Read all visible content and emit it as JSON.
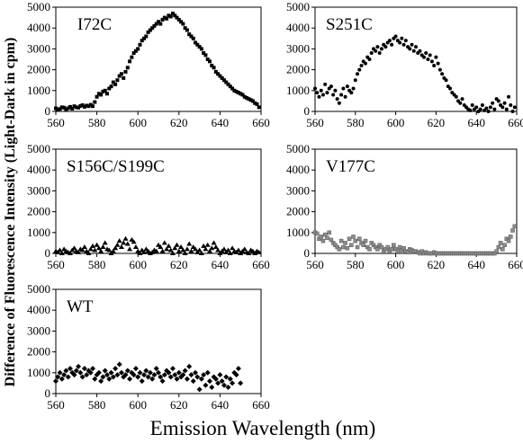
{
  "figure": {
    "xlabel": "Emission Wavelength (nm)",
    "ylabel": "Difference of Fluorescence Intensity (Light-Dark in cpm)"
  },
  "colors": {
    "axis": "#000000",
    "grid_fill": "#ffffff",
    "marker_dark": "#000000",
    "marker_gray": "#8c8c8c"
  },
  "chart_data": [
    {
      "type": "scatter",
      "title": "I72C",
      "marker": "square",
      "xlim": [
        560,
        660
      ],
      "ylim": [
        0,
        5000
      ],
      "xticks": [
        560,
        580,
        600,
        620,
        640,
        660
      ],
      "yticks": [
        0,
        1000,
        2000,
        3000,
        4000,
        5000
      ],
      "x": [
        560,
        561,
        562,
        563,
        564,
        565,
        566,
        567,
        568,
        569,
        570,
        571,
        572,
        573,
        574,
        575,
        576,
        577,
        578,
        579,
        580,
        581,
        582,
        583,
        584,
        585,
        586,
        587,
        588,
        589,
        590,
        591,
        592,
        593,
        594,
        595,
        596,
        597,
        598,
        599,
        600,
        601,
        602,
        603,
        604,
        605,
        606,
        607,
        608,
        609,
        610,
        611,
        612,
        613,
        614,
        615,
        616,
        617,
        618,
        619,
        620,
        621,
        622,
        623,
        624,
        625,
        626,
        627,
        628,
        629,
        630,
        631,
        632,
        633,
        634,
        635,
        636,
        637,
        638,
        639,
        640,
        641,
        642,
        643,
        644,
        645,
        646,
        647,
        648,
        649,
        650,
        651,
        652,
        653,
        654,
        655,
        656,
        657,
        658,
        659
      ],
      "y": [
        150,
        80,
        120,
        200,
        180,
        100,
        150,
        220,
        130,
        250,
        200,
        180,
        260,
        300,
        220,
        280,
        250,
        320,
        250,
        450,
        700,
        850,
        800,
        950,
        1000,
        850,
        1100,
        1200,
        1400,
        1300,
        1500,
        1700,
        1800,
        1600,
        1900,
        2100,
        2400,
        2600,
        2800,
        2900,
        3000,
        3200,
        3400,
        3500,
        3600,
        3800,
        3900,
        4000,
        4100,
        4200,
        4300,
        4200,
        4400,
        4500,
        4450,
        4600,
        4550,
        4700,
        4600,
        4500,
        4400,
        4300,
        4200,
        4000,
        3900,
        3700,
        3600,
        3500,
        3300,
        3200,
        3100,
        3000,
        2800,
        2700,
        2500,
        2400,
        2200,
        2100,
        1900,
        1800,
        1700,
        1600,
        1500,
        1400,
        1300,
        1200,
        1100,
        1000,
        950,
        900,
        850,
        800,
        700,
        650,
        600,
        550,
        500,
        400,
        350,
        200
      ]
    },
    {
      "type": "scatter",
      "title": "S251C",
      "marker": "circle",
      "xlim": [
        560,
        660
      ],
      "ylim": [
        0,
        5000
      ],
      "xticks": [
        560,
        580,
        600,
        620,
        640,
        660
      ],
      "yticks": [
        0,
        1000,
        2000,
        3000,
        4000,
        5000
      ],
      "x": [
        560,
        561,
        562,
        563,
        564,
        565,
        566,
        567,
        568,
        569,
        570,
        571,
        572,
        573,
        574,
        575,
        576,
        577,
        578,
        579,
        580,
        581,
        582,
        583,
        584,
        585,
        586,
        587,
        588,
        589,
        590,
        591,
        592,
        593,
        594,
        595,
        596,
        597,
        598,
        599,
        600,
        601,
        602,
        603,
        604,
        605,
        606,
        607,
        608,
        609,
        610,
        611,
        612,
        613,
        614,
        615,
        616,
        617,
        618,
        619,
        620,
        621,
        622,
        623,
        624,
        625,
        626,
        627,
        628,
        629,
        630,
        631,
        632,
        633,
        634,
        635,
        636,
        637,
        638,
        639,
        640,
        641,
        642,
        643,
        644,
        645,
        646,
        647,
        648,
        649,
        650,
        651,
        652,
        653,
        654,
        655,
        656,
        657,
        658,
        659
      ],
      "y": [
        1100,
        900,
        700,
        1000,
        800,
        1300,
        900,
        1100,
        1200,
        800,
        1000,
        600,
        400,
        800,
        1100,
        700,
        1200,
        1000,
        900,
        1100,
        1500,
        1800,
        2000,
        2200,
        2400,
        2300,
        2600,
        2500,
        2800,
        3000,
        2900,
        3100,
        2800,
        3000,
        3200,
        3100,
        3300,
        3400,
        3200,
        3500,
        3600,
        3400,
        3300,
        3500,
        3200,
        3400,
        3100,
        3000,
        3200,
        2900,
        3100,
        2800,
        2900,
        2700,
        2600,
        2800,
        2500,
        2700,
        2400,
        2200,
        2600,
        2300,
        2000,
        1800,
        1600,
        1500,
        1200,
        1100,
        900,
        800,
        700,
        500,
        400,
        600,
        300,
        200,
        100,
        50,
        300,
        100,
        200,
        0,
        100,
        300,
        50,
        150,
        0,
        200,
        400,
        100,
        600,
        500,
        300,
        200,
        400,
        100,
        700,
        300,
        0,
        200
      ]
    },
    {
      "type": "scatter",
      "title": "S156C/S199C",
      "marker": "triangle",
      "xlim": [
        560,
        660
      ],
      "ylim": [
        0,
        5000
      ],
      "xticks": [
        560,
        580,
        600,
        620,
        640,
        660
      ],
      "yticks": [
        0,
        1000,
        2000,
        3000,
        4000,
        5000
      ],
      "x": [
        560,
        561,
        562,
        563,
        564,
        565,
        566,
        567,
        568,
        569,
        570,
        571,
        572,
        573,
        574,
        575,
        576,
        577,
        578,
        579,
        580,
        581,
        582,
        583,
        584,
        585,
        586,
        587,
        588,
        589,
        590,
        591,
        592,
        593,
        594,
        595,
        596,
        597,
        598,
        599,
        600,
        601,
        602,
        603,
        604,
        605,
        606,
        607,
        608,
        609,
        610,
        611,
        612,
        613,
        614,
        615,
        616,
        617,
        618,
        619,
        620,
        621,
        622,
        623,
        624,
        625,
        626,
        627,
        628,
        629,
        630,
        631,
        632,
        633,
        634,
        635,
        636,
        637,
        638,
        639,
        640,
        641,
        642,
        643,
        644,
        645,
        646,
        647,
        648,
        649,
        650,
        651,
        652,
        653,
        654,
        655,
        656,
        657,
        658,
        659
      ],
      "y": [
        100,
        50,
        150,
        0,
        200,
        100,
        50,
        0,
        150,
        250,
        100,
        50,
        200,
        150,
        300,
        100,
        0,
        200,
        350,
        150,
        400,
        250,
        100,
        300,
        500,
        200,
        150,
        0,
        100,
        250,
        400,
        600,
        300,
        500,
        700,
        450,
        200,
        650,
        550,
        300,
        100,
        0,
        150,
        50,
        200,
        100,
        0,
        50,
        150,
        100,
        400,
        300,
        100,
        500,
        200,
        350,
        150,
        0,
        250,
        400,
        100,
        300,
        150,
        0,
        200,
        450,
        100,
        300,
        200,
        50,
        150,
        0,
        350,
        200,
        400,
        100,
        250,
        500,
        300,
        150,
        0,
        100,
        200,
        50,
        150,
        0,
        250,
        100,
        50,
        150,
        0,
        100,
        200,
        50,
        0,
        150,
        100,
        0,
        100,
        50
      ]
    },
    {
      "type": "scatter",
      "title": "V177C",
      "marker": "square-gray",
      "xlim": [
        560,
        660
      ],
      "ylim": [
        0,
        5000
      ],
      "xticks": [
        560,
        580,
        600,
        620,
        640,
        660
      ],
      "yticks": [
        0,
        1000,
        2000,
        3000,
        4000,
        5000
      ],
      "x": [
        560,
        561,
        562,
        563,
        564,
        565,
        566,
        567,
        568,
        569,
        570,
        571,
        572,
        573,
        574,
        575,
        576,
        577,
        578,
        579,
        580,
        581,
        582,
        583,
        584,
        585,
        586,
        587,
        588,
        589,
        590,
        591,
        592,
        593,
        594,
        595,
        596,
        597,
        598,
        599,
        600,
        601,
        602,
        603,
        604,
        605,
        606,
        607,
        608,
        609,
        610,
        611,
        612,
        613,
        614,
        615,
        616,
        617,
        618,
        619,
        620,
        621,
        622,
        623,
        624,
        625,
        626,
        627,
        628,
        629,
        630,
        631,
        632,
        633,
        634,
        635,
        636,
        637,
        638,
        639,
        640,
        641,
        642,
        643,
        644,
        645,
        646,
        647,
        648,
        649,
        650,
        651,
        652,
        653,
        654,
        655,
        656,
        657,
        658,
        659
      ],
      "y": [
        1000,
        950,
        700,
        800,
        600,
        900,
        750,
        1000,
        650,
        500,
        400,
        300,
        200,
        600,
        300,
        500,
        250,
        700,
        400,
        800,
        600,
        300,
        700,
        500,
        400,
        600,
        300,
        200,
        500,
        400,
        300,
        200,
        400,
        300,
        100,
        200,
        300,
        100,
        200,
        400,
        200,
        100,
        300,
        150,
        250,
        100,
        50,
        200,
        150,
        100,
        100,
        50,
        0,
        100,
        0,
        50,
        0,
        0,
        0,
        50,
        0,
        0,
        0,
        0,
        0,
        0,
        0,
        0,
        0,
        0,
        0,
        0,
        0,
        0,
        0,
        0,
        0,
        0,
        0,
        0,
        0,
        0,
        0,
        0,
        0,
        0,
        0,
        0,
        0,
        0,
        100,
        300,
        500,
        200,
        400,
        700,
        600,
        800,
        1100,
        1300
      ]
    },
    {
      "type": "scatter",
      "title": "WT",
      "marker": "diamond",
      "xlim": [
        560,
        660
      ],
      "ylim": [
        0,
        5000
      ],
      "xticks": [
        560,
        580,
        600,
        620,
        640,
        660
      ],
      "yticks": [
        0,
        1000,
        2000,
        3000,
        4000,
        5000
      ],
      "x": [
        560,
        561,
        562,
        563,
        564,
        565,
        566,
        567,
        568,
        569,
        570,
        571,
        572,
        573,
        574,
        575,
        576,
        577,
        578,
        579,
        580,
        581,
        582,
        583,
        584,
        585,
        586,
        587,
        588,
        589,
        590,
        591,
        592,
        593,
        594,
        595,
        596,
        597,
        598,
        599,
        600,
        601,
        602,
        603,
        604,
        605,
        606,
        607,
        608,
        609,
        610,
        611,
        612,
        613,
        614,
        615,
        616,
        617,
        618,
        619,
        620,
        621,
        622,
        623,
        624,
        625,
        626,
        627,
        628,
        629,
        630,
        631,
        632,
        633,
        634,
        635,
        636,
        637,
        638,
        639,
        640,
        641,
        642,
        643,
        644,
        645,
        646,
        647,
        648,
        649,
        650
      ],
      "y": [
        600,
        800,
        1000,
        700,
        900,
        1100,
        800,
        1200,
        1000,
        900,
        1100,
        1300,
        1000,
        800,
        1200,
        900,
        1100,
        1000,
        1200,
        700,
        900,
        1000,
        600,
        800,
        1100,
        900,
        700,
        1000,
        800,
        1200,
        900,
        1400,
        1000,
        800,
        900,
        1100,
        700,
        1000,
        900,
        1200,
        800,
        1000,
        600,
        900,
        1100,
        800,
        1000,
        700,
        900,
        1200,
        1000,
        800,
        600,
        900,
        1100,
        1000,
        800,
        1200,
        900,
        700,
        1000,
        800,
        900,
        1100,
        700,
        1300,
        900,
        600,
        1000,
        800,
        200,
        700,
        900,
        400,
        1000,
        600,
        300,
        800,
        700,
        500,
        900,
        600,
        400,
        800,
        300,
        700,
        500,
        1000,
        900,
        1200,
        500
      ]
    }
  ]
}
